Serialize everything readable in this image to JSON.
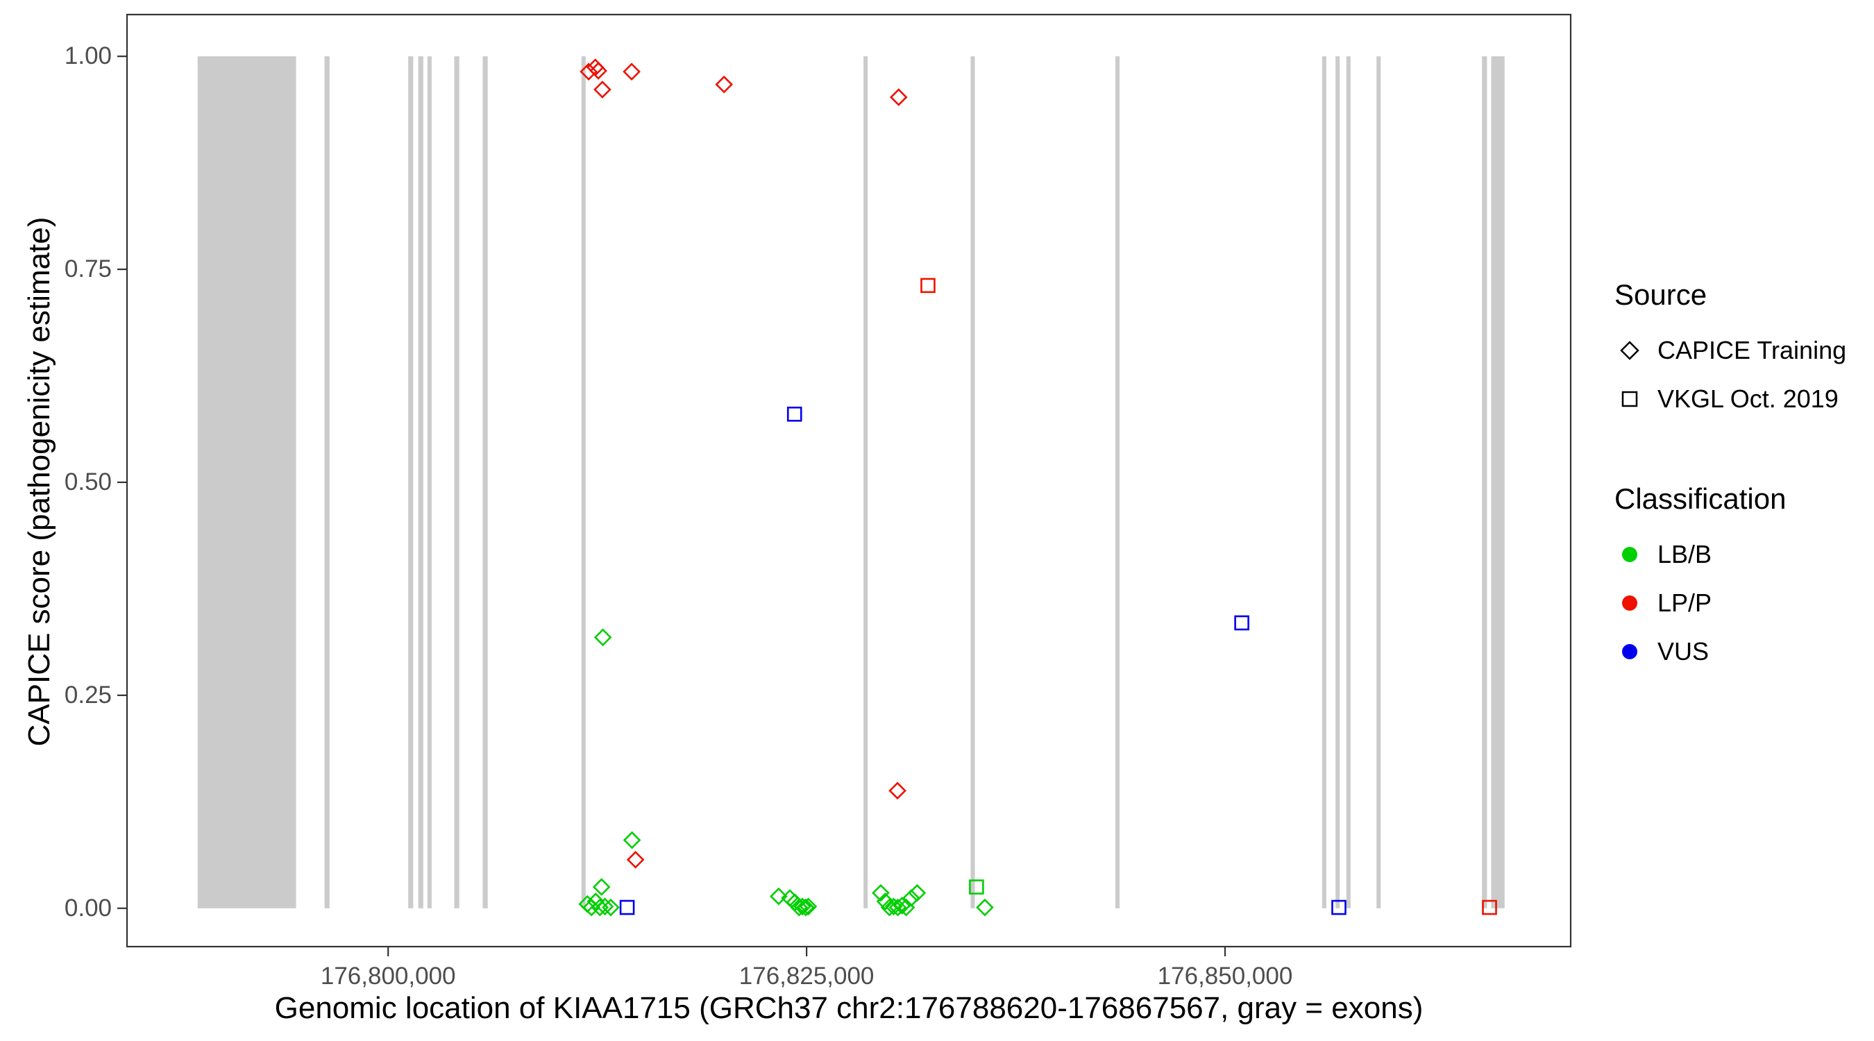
{
  "chart_data": {
    "type": "scatter",
    "title": "",
    "xlabel": "Genomic location of KIAA1715 (GRCh37 chr2:176788620-176867567, gray = exons)",
    "ylabel": "CAPICE score (pathogenicity estimate)",
    "x_domain": [
      176784400,
      176870650
    ],
    "y_domain": [
      -0.045,
      1.049
    ],
    "grid": false,
    "legend_position": "right",
    "x_ticks": [
      {
        "value": 176800000,
        "label": "176,800,000"
      },
      {
        "value": 176825000,
        "label": "176,825,000"
      },
      {
        "value": 176850000,
        "label": "176,850,000"
      }
    ],
    "y_ticks": [
      {
        "value": 0.0,
        "label": "0.00"
      },
      {
        "value": 0.25,
        "label": "0.25"
      },
      {
        "value": 0.5,
        "label": "0.50"
      },
      {
        "value": 0.75,
        "label": "0.75"
      },
      {
        "value": 1.0,
        "label": "1.00"
      }
    ],
    "exon_color": "#cbcbcb",
    "exons": [
      [
        176788620,
        176794500
      ],
      [
        176796200,
        176796500
      ],
      [
        176801200,
        176801500
      ],
      [
        176801800,
        176802100
      ],
      [
        176802350,
        176802600
      ],
      [
        176803950,
        176804250
      ],
      [
        176805650,
        176805950
      ],
      [
        176811550,
        176811800
      ],
      [
        176828400,
        176828650
      ],
      [
        176834800,
        176835050
      ],
      [
        176843450,
        176843700
      ],
      [
        176855800,
        176856050
      ],
      [
        176856600,
        176856850
      ],
      [
        176857250,
        176857500
      ],
      [
        176859050,
        176859300
      ],
      [
        176865350,
        176865650
      ],
      [
        176865900,
        176866700
      ]
    ],
    "shape_by_source": {
      "CAPICE Training": "diamond",
      "VKGL Oct. 2019": "square"
    },
    "color_by_class": {
      "LB/B": "#00cf00",
      "LP/P": "#ee1100",
      "VUS": "#0000ee"
    },
    "points": [
      {
        "x": 176811980,
        "y": 0.982,
        "source": "CAPICE Training",
        "class": "LP/P"
      },
      {
        "x": 176812380,
        "y": 0.987,
        "source": "CAPICE Training",
        "class": "LP/P"
      },
      {
        "x": 176812560,
        "y": 0.983,
        "source": "CAPICE Training",
        "class": "LP/P"
      },
      {
        "x": 176812800,
        "y": 0.961,
        "source": "CAPICE Training",
        "class": "LP/P"
      },
      {
        "x": 176814550,
        "y": 0.982,
        "source": "CAPICE Training",
        "class": "LP/P"
      },
      {
        "x": 176820070,
        "y": 0.967,
        "source": "CAPICE Training",
        "class": "LP/P"
      },
      {
        "x": 176830500,
        "y": 0.952,
        "source": "CAPICE Training",
        "class": "LP/P"
      },
      {
        "x": 176830430,
        "y": 0.138,
        "source": "CAPICE Training",
        "class": "LP/P"
      },
      {
        "x": 176814780,
        "y": 0.057,
        "source": "CAPICE Training",
        "class": "LP/P"
      },
      {
        "x": 176812830,
        "y": 0.318,
        "source": "CAPICE Training",
        "class": "LB/B"
      },
      {
        "x": 176814570,
        "y": 0.08,
        "source": "CAPICE Training",
        "class": "LB/B"
      },
      {
        "x": 176812750,
        "y": 0.025,
        "source": "CAPICE Training",
        "class": "LB/B"
      },
      {
        "x": 176811900,
        "y": 0.005,
        "source": "CAPICE Training",
        "class": "LB/B"
      },
      {
        "x": 176812150,
        "y": 0.001,
        "source": "CAPICE Training",
        "class": "LB/B"
      },
      {
        "x": 176812400,
        "y": 0.008,
        "source": "CAPICE Training",
        "class": "LB/B"
      },
      {
        "x": 176812650,
        "y": 0.001,
        "source": "CAPICE Training",
        "class": "LB/B"
      },
      {
        "x": 176812950,
        "y": 0.002,
        "source": "CAPICE Training",
        "class": "LB/B"
      },
      {
        "x": 176813300,
        "y": 0.001,
        "source": "CAPICE Training",
        "class": "LB/B"
      },
      {
        "x": 176823330,
        "y": 0.014,
        "source": "CAPICE Training",
        "class": "LB/B"
      },
      {
        "x": 176824000,
        "y": 0.012,
        "source": "CAPICE Training",
        "class": "LB/B"
      },
      {
        "x": 176824300,
        "y": 0.007,
        "source": "CAPICE Training",
        "class": "LB/B"
      },
      {
        "x": 176824550,
        "y": 0.001,
        "source": "CAPICE Training",
        "class": "LB/B"
      },
      {
        "x": 176824750,
        "y": 0.002,
        "source": "CAPICE Training",
        "class": "LB/B"
      },
      {
        "x": 176824950,
        "y": 0.001,
        "source": "CAPICE Training",
        "class": "LB/B"
      },
      {
        "x": 176825100,
        "y": 0.002,
        "source": "CAPICE Training",
        "class": "LB/B"
      },
      {
        "x": 176829430,
        "y": 0.018,
        "source": "CAPICE Training",
        "class": "LB/B"
      },
      {
        "x": 176829700,
        "y": 0.008,
        "source": "CAPICE Training",
        "class": "LB/B"
      },
      {
        "x": 176829950,
        "y": 0.001,
        "source": "CAPICE Training",
        "class": "LB/B"
      },
      {
        "x": 176830200,
        "y": 0.002,
        "source": "CAPICE Training",
        "class": "LB/B"
      },
      {
        "x": 176830450,
        "y": 0.001,
        "source": "CAPICE Training",
        "class": "LB/B"
      },
      {
        "x": 176830700,
        "y": 0.003,
        "source": "CAPICE Training",
        "class": "LB/B"
      },
      {
        "x": 176830950,
        "y": 0.001,
        "source": "CAPICE Training",
        "class": "LB/B"
      },
      {
        "x": 176831250,
        "y": 0.012,
        "source": "CAPICE Training",
        "class": "LB/B"
      },
      {
        "x": 176831600,
        "y": 0.018,
        "source": "CAPICE Training",
        "class": "LB/B"
      },
      {
        "x": 176835650,
        "y": 0.001,
        "source": "CAPICE Training",
        "class": "LB/B"
      },
      {
        "x": 176832250,
        "y": 0.731,
        "source": "VKGL Oct. 2019",
        "class": "LP/P"
      },
      {
        "x": 176865800,
        "y": 0.001,
        "source": "VKGL Oct. 2019",
        "class": "LP/P"
      },
      {
        "x": 176824280,
        "y": 0.58,
        "source": "VKGL Oct. 2019",
        "class": "VUS"
      },
      {
        "x": 176851000,
        "y": 0.335,
        "source": "VKGL Oct. 2019",
        "class": "VUS"
      },
      {
        "x": 176856800,
        "y": 0.001,
        "source": "VKGL Oct. 2019",
        "class": "VUS"
      },
      {
        "x": 176814280,
        "y": 0.001,
        "source": "VKGL Oct. 2019",
        "class": "VUS"
      },
      {
        "x": 176835150,
        "y": 0.025,
        "source": "VKGL Oct. 2019",
        "class": "LB/B"
      }
    ]
  },
  "legend": {
    "source": {
      "title": "Source",
      "items": [
        {
          "label": "CAPICE Training",
          "shape": "diamond"
        },
        {
          "label": "VKGL Oct. 2019",
          "shape": "square"
        }
      ]
    },
    "classification": {
      "title": "Classification",
      "items": [
        {
          "label": "LB/B",
          "color_key": "LB/B"
        },
        {
          "label": "LP/P",
          "color_key": "LP/P"
        },
        {
          "label": "VUS",
          "color_key": "VUS"
        }
      ]
    }
  }
}
